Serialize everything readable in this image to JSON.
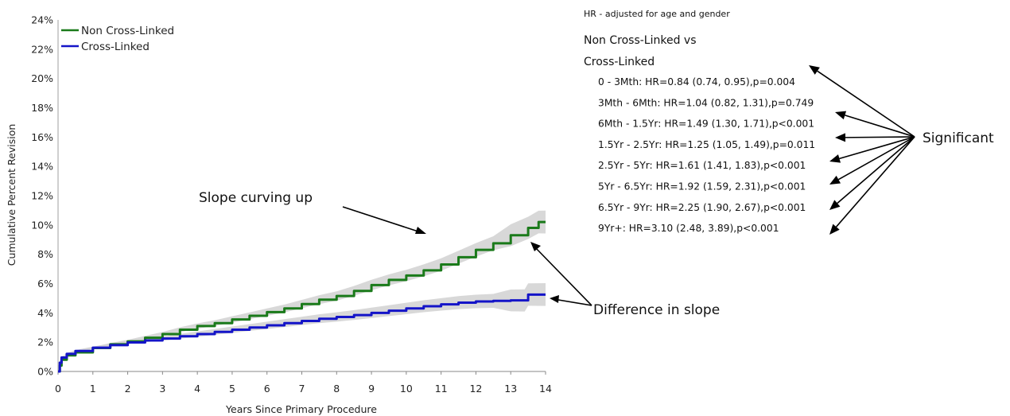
{
  "chart_data": {
    "type": "line",
    "xlabel": "Years Since Primary Procedure",
    "ylabel": "Cumulative Percent Revision",
    "xlim": [
      0,
      14
    ],
    "ylim": [
      0,
      24
    ],
    "x_ticks": [
      "0",
      "1",
      "2",
      "3",
      "4",
      "5",
      "6",
      "7",
      "8",
      "9",
      "10",
      "11",
      "12",
      "13",
      "14"
    ],
    "y_ticks": [
      "0%",
      "2%",
      "4%",
      "6%",
      "8%",
      "10%",
      "12%",
      "14%",
      "16%",
      "18%",
      "20%",
      "22%",
      "24%"
    ],
    "grid": false,
    "legend_position": "top-left",
    "series": [
      {
        "name": "Non Cross-Linked",
        "color": "#1a7a1a",
        "x": [
          0,
          0.05,
          0.1,
          0.25,
          0.5,
          1,
          1.5,
          2,
          2.5,
          3,
          3.5,
          4,
          4.5,
          5,
          5.5,
          6,
          6.5,
          7,
          7.5,
          8,
          8.5,
          9,
          9.5,
          10,
          10.5,
          11,
          11.5,
          12,
          12.5,
          13,
          13.5,
          13.8,
          14
        ],
        "y": [
          0,
          0.4,
          0.8,
          1.1,
          1.3,
          1.6,
          1.85,
          2.05,
          2.3,
          2.55,
          2.85,
          3.1,
          3.3,
          3.55,
          3.8,
          4.05,
          4.3,
          4.6,
          4.9,
          5.15,
          5.5,
          5.9,
          6.25,
          6.55,
          6.9,
          7.3,
          7.8,
          8.3,
          8.75,
          9.3,
          9.8,
          10.2,
          10.2
        ]
      },
      {
        "name": "Cross-Linked",
        "color": "#1414c8",
        "x": [
          0,
          0.05,
          0.1,
          0.25,
          0.5,
          1,
          1.5,
          2,
          2.5,
          3,
          3.5,
          4,
          4.5,
          5,
          5.5,
          6,
          6.5,
          7,
          7.5,
          8,
          8.5,
          9,
          9.5,
          10,
          10.5,
          11,
          11.5,
          12,
          12.5,
          13,
          13.4,
          13.5,
          13.7,
          14
        ],
        "y": [
          0,
          0.6,
          0.95,
          1.2,
          1.4,
          1.62,
          1.8,
          1.98,
          2.12,
          2.25,
          2.4,
          2.55,
          2.7,
          2.85,
          3.0,
          3.15,
          3.3,
          3.45,
          3.6,
          3.72,
          3.85,
          4.0,
          4.15,
          4.3,
          4.45,
          4.58,
          4.7,
          4.78,
          4.82,
          4.85,
          4.85,
          5.25,
          5.25,
          5.25
        ]
      }
    ],
    "hr_panel": {
      "title": "HR - adjusted for age and gender",
      "heading_line1": "Non Cross-Linked vs",
      "heading_line2": "Cross-Linked",
      "rows": [
        "0 - 3Mth: HR=0.84 (0.74, 0.95),p=0.004",
        "3Mth - 6Mth: HR=1.04 (0.82, 1.31),p=0.749",
        "6Mth - 1.5Yr: HR=1.49 (1.30, 1.71),p<0.001",
        "1.5Yr - 2.5Yr: HR=1.25 (1.05, 1.49),p=0.011",
        "2.5Yr - 5Yr: HR=1.61 (1.41, 1.83),p<0.001",
        "5Yr - 6.5Yr: HR=1.92 (1.59, 2.31),p<0.001",
        "6.5Yr - 9Yr: HR=2.25 (1.90, 2.67),p<0.001",
        "9Yr+: HR=3.10 (2.48, 3.89),p<0.001"
      ]
    },
    "annotations": {
      "slope_curving_up": "Slope curving up",
      "difference_in_slope": "Difference in slope",
      "significant": "Significant"
    }
  }
}
